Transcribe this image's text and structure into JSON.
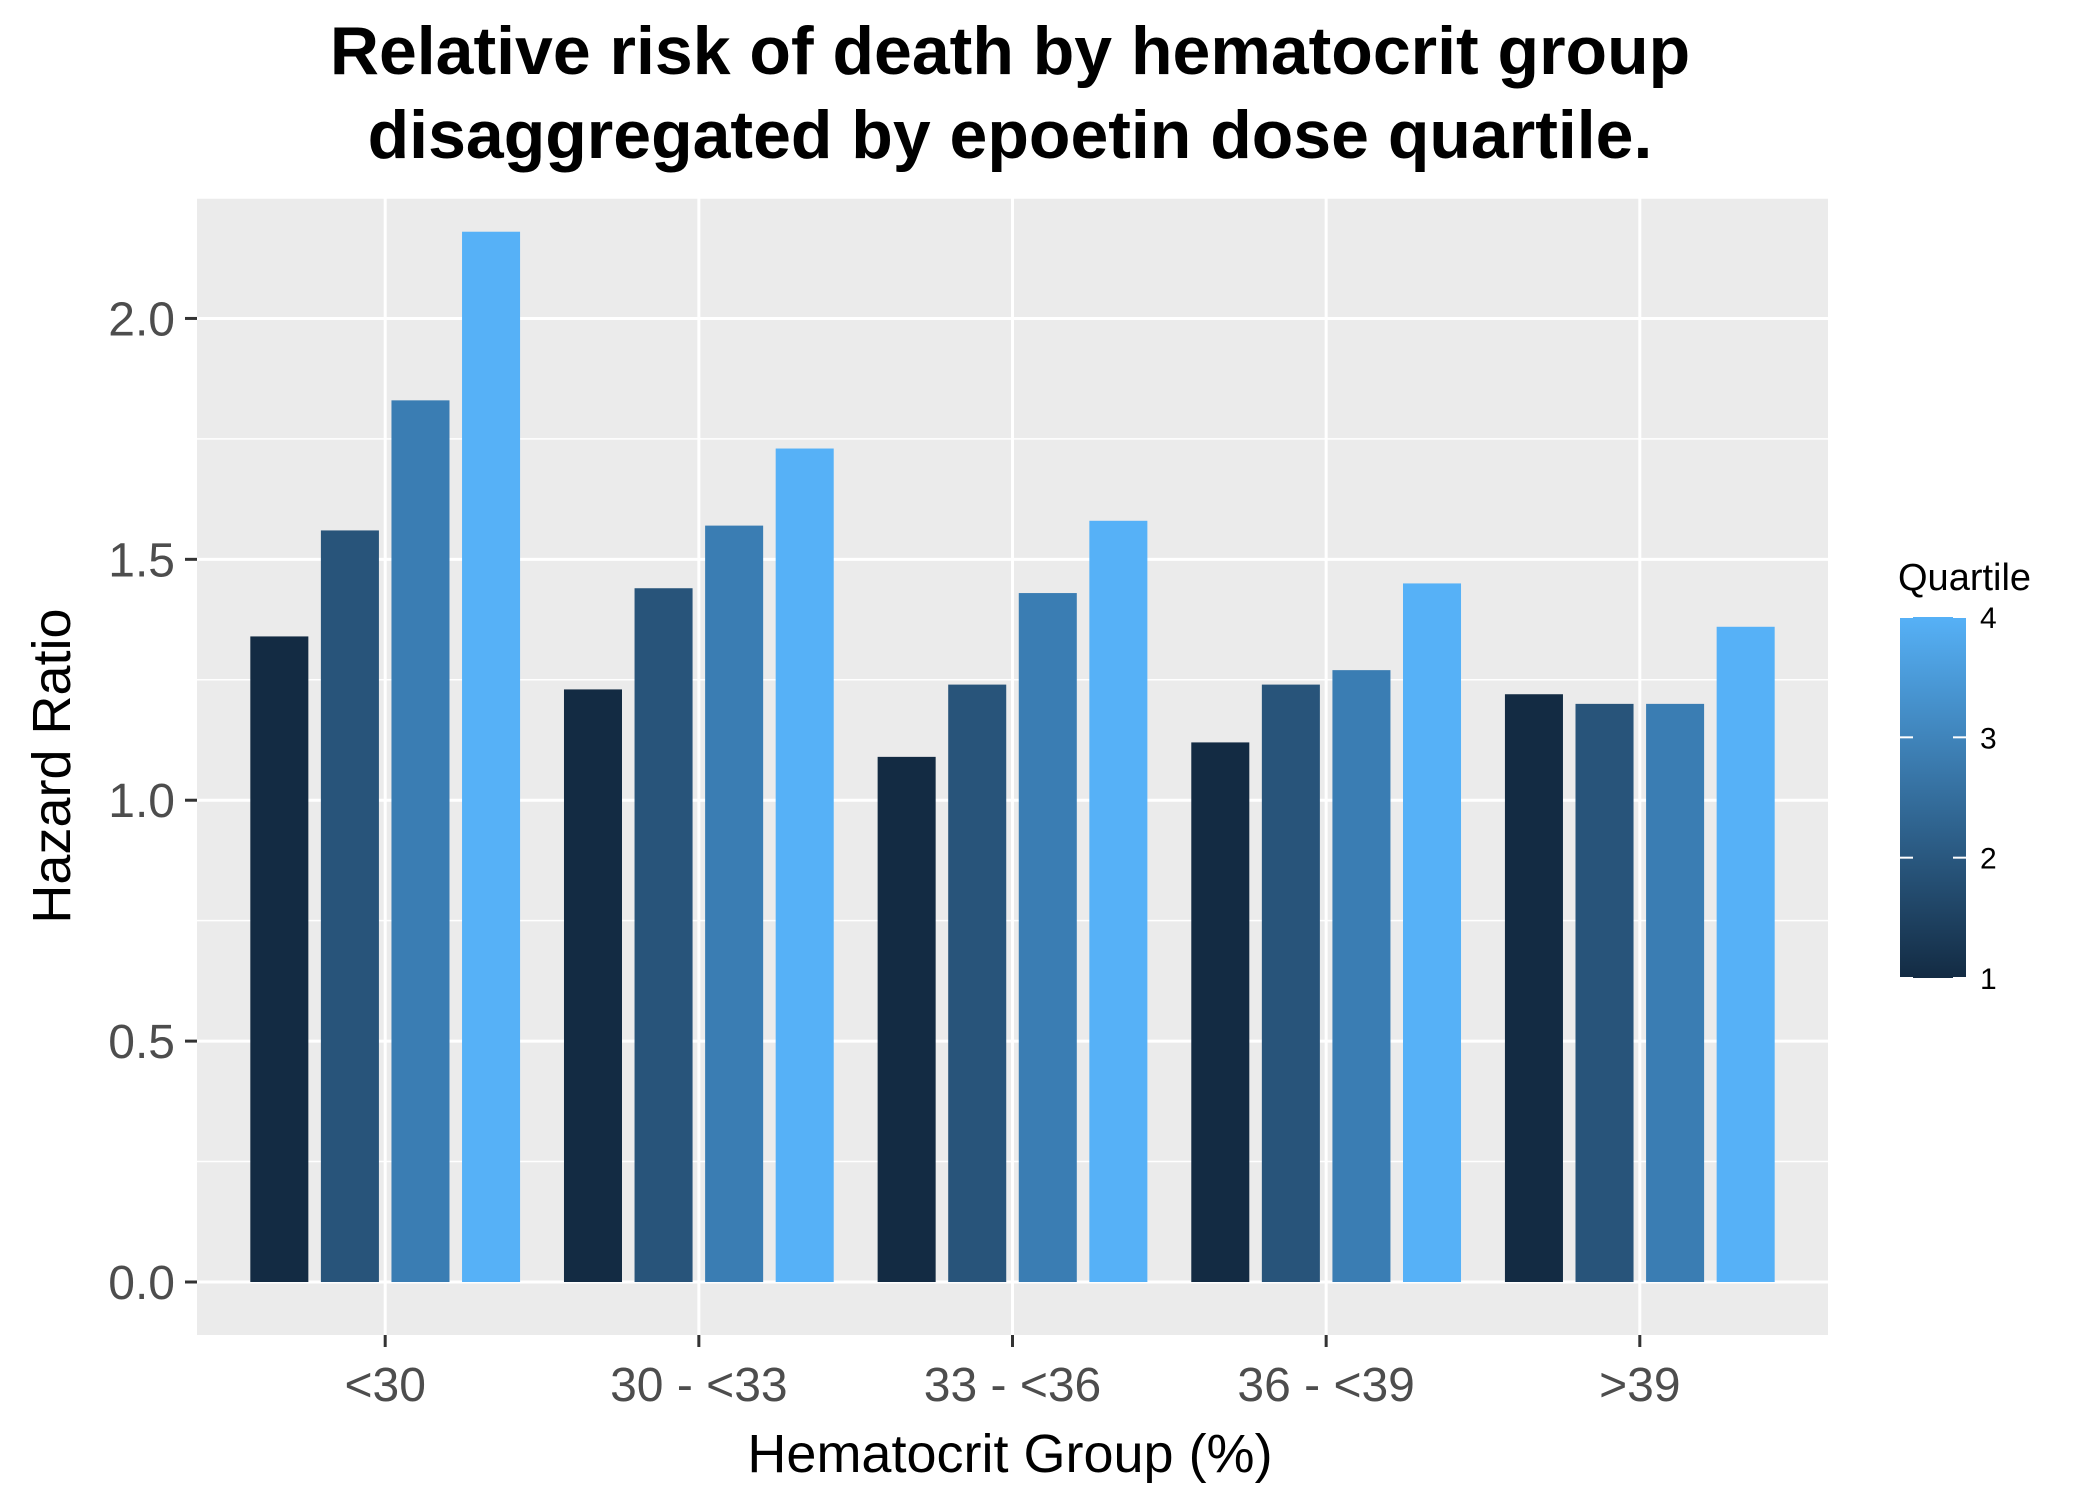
{
  "chart_data": {
    "type": "bar",
    "title_lines": [
      "Relative risk of death by hematocrit group",
      "disaggregated by epoetin dose quartile."
    ],
    "xlabel": "Hematocrit Group (%)",
    "ylabel": "Hazard Ratio",
    "categories": [
      "<30",
      "30 - <33",
      "33 - <36",
      "36 - <39",
      ">39"
    ],
    "series": [
      {
        "name": "1",
        "color": "#132B43",
        "values": [
          1.34,
          1.23,
          1.09,
          1.12,
          1.22
        ]
      },
      {
        "name": "2",
        "color": "#28547A",
        "values": [
          1.56,
          1.44,
          1.24,
          1.24,
          1.2
        ]
      },
      {
        "name": "3",
        "color": "#3A7DB3",
        "values": [
          1.83,
          1.57,
          1.43,
          1.27,
          1.2
        ]
      },
      {
        "name": "4",
        "color": "#56B1F7",
        "values": [
          2.18,
          1.73,
          1.58,
          1.45,
          1.36
        ]
      }
    ],
    "yticks": [
      "0.0",
      "0.5",
      "1.0",
      "1.5",
      "2.0"
    ],
    "ylim": [
      -0.11,
      2.25
    ],
    "grid": true,
    "legend": {
      "title": "Quartile",
      "labels": [
        "1",
        "2",
        "3",
        "4"
      ],
      "placement": "right",
      "gradient": [
        "#132B43",
        "#56B1F7"
      ]
    },
    "colors": {
      "panel": "#EBEBEB",
      "grid": "#FFFFFF",
      "tick_text": "#4D4D4D"
    }
  }
}
